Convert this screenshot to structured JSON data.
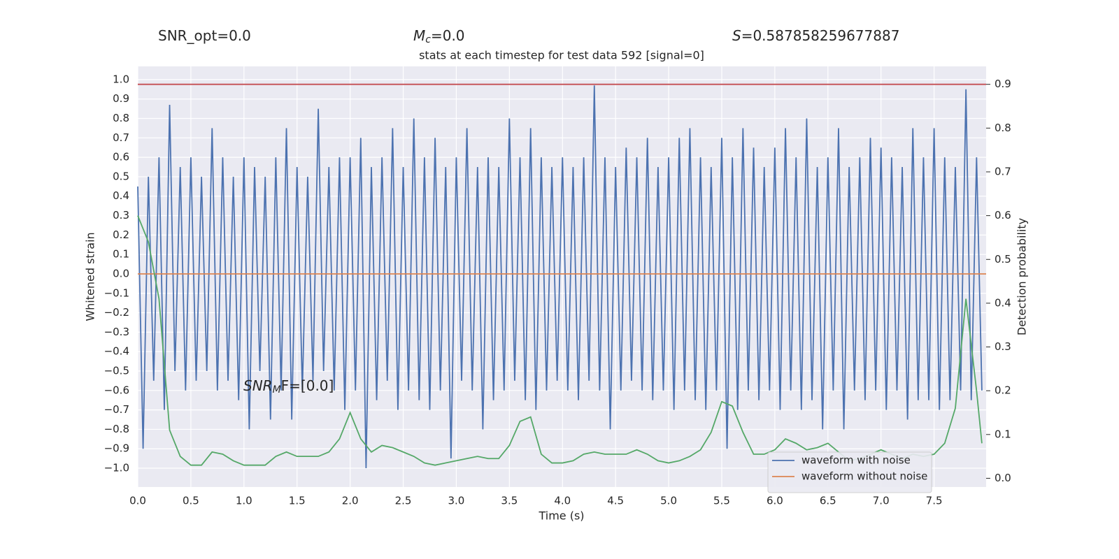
{
  "chart_data": {
    "type": "line",
    "title": "stats at each timestep for test data 592 [signal=0]",
    "annotations": {
      "snr_opt": [
        "SNR_opt=0.0"
      ],
      "mc": [
        "M",
        "c",
        "=0.0"
      ],
      "s": [
        "S",
        "=0.587858259677887"
      ],
      "snr_mf": [
        "SNR",
        "M",
        "F=[0.0]"
      ]
    },
    "xlabel": "Time (s)",
    "ylabel": "Whitened strain",
    "y2label": "Detection probability",
    "xlim": [
      0,
      7.99
    ],
    "ylim": [
      -1.097,
      1.068
    ],
    "y2lim": [
      -0.02,
      0.941
    ],
    "xticks": [
      {
        "value": 0,
        "label": "0.0"
      },
      {
        "value": 0.5,
        "label": "0.5"
      },
      {
        "value": 1,
        "label": "1.0"
      },
      {
        "value": 1.5,
        "label": "1.5"
      },
      {
        "value": 2,
        "label": "2.0"
      },
      {
        "value": 2.5,
        "label": "2.5"
      },
      {
        "value": 3,
        "label": "3.0"
      },
      {
        "value": 3.5,
        "label": "3.5"
      },
      {
        "value": 4,
        "label": "4.0"
      },
      {
        "value": 4.5,
        "label": "4.5"
      },
      {
        "value": 5,
        "label": "5.0"
      },
      {
        "value": 5.5,
        "label": "5.5"
      },
      {
        "value": 6,
        "label": "6.0"
      },
      {
        "value": 6.5,
        "label": "6.5"
      },
      {
        "value": 7,
        "label": "7.0"
      },
      {
        "value": 7.5,
        "label": "7.5"
      }
    ],
    "yticks": [
      {
        "value": -1,
        "label": "−1.0"
      },
      {
        "value": -0.9,
        "label": "−0.9"
      },
      {
        "value": -0.8,
        "label": "−0.8"
      },
      {
        "value": -0.7,
        "label": "−0.7"
      },
      {
        "value": -0.6,
        "label": "−0.6"
      },
      {
        "value": -0.5,
        "label": "−0.5"
      },
      {
        "value": -0.4,
        "label": "−0.4"
      },
      {
        "value": -0.3,
        "label": "−0.3"
      },
      {
        "value": -0.2,
        "label": "−0.2"
      },
      {
        "value": -0.1,
        "label": "−0.1"
      },
      {
        "value": 0,
        "label": "0.0"
      },
      {
        "value": 0.1,
        "label": "0.1"
      },
      {
        "value": 0.2,
        "label": "0.2"
      },
      {
        "value": 0.3,
        "label": "0.3"
      },
      {
        "value": 0.4,
        "label": "0.4"
      },
      {
        "value": 0.5,
        "label": "0.5"
      },
      {
        "value": 0.6,
        "label": "0.6"
      },
      {
        "value": 0.7,
        "label": "0.7"
      },
      {
        "value": 0.8,
        "label": "0.8"
      },
      {
        "value": 0.9,
        "label": "0.9"
      },
      {
        "value": 1,
        "label": "1.0"
      }
    ],
    "y2ticks": [
      {
        "value": 0,
        "label": "0.0"
      },
      {
        "value": 0.1,
        "label": "0.1"
      },
      {
        "value": 0.2,
        "label": "0.2"
      },
      {
        "value": 0.3,
        "label": "0.3"
      },
      {
        "value": 0.4,
        "label": "0.4"
      },
      {
        "value": 0.5,
        "label": "0.5"
      },
      {
        "value": 0.6,
        "label": "0.6"
      },
      {
        "value": 0.7,
        "label": "0.7"
      },
      {
        "value": 0.8,
        "label": "0.8"
      },
      {
        "value": 0.9,
        "label": "0.9"
      }
    ],
    "grid": true,
    "legend": "lower right",
    "hlines": [
      {
        "value": 0.9,
        "axis": "y2",
        "color": "#c44e52"
      }
    ],
    "series": [
      {
        "name": "waveform with noise",
        "color": "#4c72b0",
        "x": [
          0,
          0.05,
          0.1,
          0.15,
          0.2,
          0.25,
          0.3,
          0.35,
          0.4,
          0.45,
          0.5,
          0.55,
          0.6,
          0.65,
          0.7,
          0.75,
          0.8,
          0.85,
          0.9,
          0.95,
          1,
          1.05,
          1.1,
          1.15,
          1.2,
          1.25,
          1.3,
          1.35,
          1.4,
          1.45,
          1.5,
          1.55,
          1.6,
          1.65,
          1.7,
          1.75,
          1.8,
          1.85,
          1.9,
          1.95,
          2,
          2.05,
          2.1,
          2.15,
          2.2,
          2.25,
          2.3,
          2.35,
          2.4,
          2.45,
          2.5,
          2.55,
          2.6,
          2.65,
          2.7,
          2.75,
          2.8,
          2.85,
          2.9,
          2.95,
          3,
          3.05,
          3.1,
          3.15,
          3.2,
          3.25,
          3.3,
          3.35,
          3.4,
          3.45,
          3.5,
          3.55,
          3.6,
          3.65,
          3.7,
          3.75,
          3.8,
          3.85,
          3.9,
          3.95,
          4,
          4.05,
          4.1,
          4.15,
          4.2,
          4.25,
          4.3,
          4.35,
          4.4,
          4.45,
          4.5,
          4.55,
          4.6,
          4.65,
          4.7,
          4.75,
          4.8,
          4.85,
          4.9,
          4.95,
          5,
          5.05,
          5.1,
          5.15,
          5.2,
          5.25,
          5.3,
          5.35,
          5.4,
          5.45,
          5.5,
          5.55,
          5.6,
          5.65,
          5.7,
          5.75,
          5.8,
          5.85,
          5.9,
          5.95,
          6,
          6.05,
          6.1,
          6.15,
          6.2,
          6.25,
          6.3,
          6.35,
          6.4,
          6.45,
          6.5,
          6.55,
          6.6,
          6.65,
          6.7,
          6.75,
          6.8,
          6.85,
          6.9,
          6.95,
          7,
          7.05,
          7.1,
          7.15,
          7.2,
          7.25,
          7.3,
          7.35,
          7.4,
          7.45,
          7.5,
          7.55,
          7.6,
          7.65,
          7.7,
          7.75,
          7.8,
          7.85,
          7.9,
          7.95
        ],
        "values": [
          0.45,
          -0.9,
          0.5,
          -0.55,
          0.6,
          -0.7,
          0.87,
          -0.5,
          0.55,
          -0.6,
          0.6,
          -0.55,
          0.5,
          -0.5,
          0.75,
          -0.6,
          0.6,
          -0.55,
          0.5,
          -0.65,
          0.6,
          -0.8,
          0.55,
          -0.5,
          0.5,
          -0.75,
          0.6,
          -0.6,
          0.75,
          -0.75,
          0.55,
          -0.6,
          0.5,
          -0.55,
          0.85,
          -0.5,
          0.55,
          -0.6,
          0.6,
          -0.7,
          0.6,
          -0.6,
          0.7,
          -1.0,
          0.55,
          -0.65,
          0.6,
          -0.55,
          0.75,
          -0.7,
          0.55,
          -0.6,
          0.8,
          -0.65,
          0.6,
          -0.7,
          0.7,
          -0.6,
          0.55,
          -0.95,
          0.6,
          -0.55,
          0.75,
          -0.6,
          0.55,
          -0.8,
          0.6,
          -0.65,
          0.55,
          -0.6,
          0.8,
          -0.55,
          0.6,
          -0.65,
          0.75,
          -0.7,
          0.6,
          -0.6,
          0.55,
          -0.55,
          0.6,
          -0.6,
          0.55,
          -0.65,
          0.6,
          -0.55,
          0.97,
          -0.6,
          0.6,
          -0.8,
          0.55,
          -0.6,
          0.65,
          -0.55,
          0.6,
          -0.6,
          0.7,
          -0.65,
          0.55,
          -0.6,
          0.6,
          -0.7,
          0.7,
          -0.6,
          0.75,
          -0.65,
          0.6,
          -0.7,
          0.55,
          -0.6,
          0.7,
          -0.9,
          0.6,
          -0.7,
          0.75,
          -0.6,
          0.65,
          -0.65,
          0.55,
          -0.6,
          0.65,
          -0.7,
          0.75,
          -0.6,
          0.6,
          -0.7,
          0.8,
          -0.65,
          0.55,
          -0.8,
          0.6,
          -0.6,
          0.75,
          -0.8,
          0.55,
          -0.6,
          0.6,
          -0.65,
          0.7,
          -0.6,
          0.65,
          -0.7,
          0.6,
          -0.6,
          0.55,
          -0.75,
          0.75,
          -0.65,
          0.6,
          -0.65,
          0.75,
          -0.7,
          0.6,
          -0.65,
          0.55,
          -0.6,
          0.95,
          -0.65,
          0.6,
          -0.6
        ]
      },
      {
        "name": "waveform without noise",
        "color": "#dd8452",
        "x": [
          0,
          7.99
        ],
        "values": [
          0,
          0
        ]
      },
      {
        "color": "#55a868",
        "axis": "y2",
        "x": [
          0,
          0.1,
          0.2,
          0.3,
          0.4,
          0.5,
          0.6,
          0.7,
          0.8,
          0.9,
          1,
          1.1,
          1.2,
          1.3,
          1.4,
          1.5,
          1.6,
          1.7,
          1.8,
          1.9,
          2,
          2.1,
          2.2,
          2.3,
          2.4,
          2.5,
          2.6,
          2.7,
          2.8,
          2.9,
          3,
          3.1,
          3.2,
          3.3,
          3.4,
          3.5,
          3.6,
          3.7,
          3.8,
          3.9,
          4,
          4.1,
          4.2,
          4.3,
          4.4,
          4.5,
          4.6,
          4.7,
          4.8,
          4.9,
          5,
          5.1,
          5.2,
          5.3,
          5.4,
          5.5,
          5.6,
          5.7,
          5.8,
          5.9,
          6,
          6.1,
          6.2,
          6.3,
          6.4,
          6.5,
          6.6,
          6.7,
          6.8,
          6.9,
          7,
          7.1,
          7.2,
          7.3,
          7.4,
          7.5,
          7.6,
          7.7,
          7.8,
          7.9,
          7.95
        ],
        "values": [
          0.6,
          0.54,
          0.41,
          0.11,
          0.05,
          0.03,
          0.03,
          0.06,
          0.055,
          0.04,
          0.03,
          0.03,
          0.03,
          0.05,
          0.06,
          0.05,
          0.05,
          0.05,
          0.06,
          0.09,
          0.15,
          0.09,
          0.06,
          0.075,
          0.07,
          0.06,
          0.05,
          0.035,
          0.03,
          0.035,
          0.04,
          0.045,
          0.05,
          0.045,
          0.045,
          0.075,
          0.13,
          0.14,
          0.055,
          0.035,
          0.035,
          0.04,
          0.055,
          0.06,
          0.055,
          0.055,
          0.055,
          0.065,
          0.055,
          0.04,
          0.035,
          0.04,
          0.05,
          0.065,
          0.105,
          0.175,
          0.165,
          0.105,
          0.055,
          0.055,
          0.065,
          0.09,
          0.08,
          0.065,
          0.07,
          0.08,
          0.06,
          0.04,
          0.045,
          0.055,
          0.065,
          0.055,
          0.045,
          0.055,
          0.05,
          0.055,
          0.08,
          0.16,
          0.41,
          0.2,
          0.08
        ]
      }
    ]
  }
}
